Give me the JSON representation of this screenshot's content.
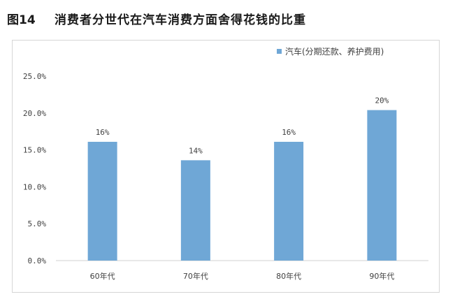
{
  "figure": {
    "label": "图14",
    "title": "消费者分世代在汽车消费方面舍得花钱的比重"
  },
  "chart_data": {
    "type": "bar",
    "categories": [
      "60年代",
      "70年代",
      "80年代",
      "90年代"
    ],
    "series": [
      {
        "name": "汽车(分期还款、养护费用)",
        "values": [
          16.1,
          13.6,
          16.1,
          20.4
        ],
        "data_labels": [
          "16%",
          "14%",
          "16%",
          "20%"
        ],
        "color": "#6fa7d6"
      }
    ],
    "y_ticks": [
      "0.0%",
      "5.0%",
      "10.0%",
      "15.0%",
      "20.0%",
      "25.0%"
    ],
    "ylim": [
      0,
      25
    ],
    "grid": false,
    "legend_position": "top-right"
  }
}
